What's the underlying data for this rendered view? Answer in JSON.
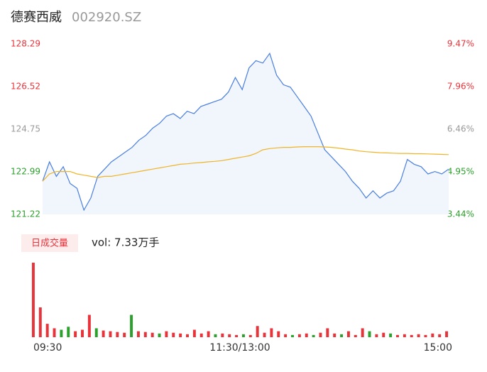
{
  "chart_data": [
    {
      "type": "line",
      "title": "德赛西威",
      "subtitle": "002920.SZ",
      "series": [
        {
          "name": "price",
          "color": "#4a7fe0",
          "values": [
            122.6,
            123.4,
            122.8,
            123.2,
            122.5,
            122.3,
            121.4,
            121.9,
            122.8,
            123.1,
            123.4,
            123.6,
            123.8,
            124.0,
            124.3,
            124.5,
            124.8,
            125.0,
            125.3,
            125.4,
            125.2,
            125.5,
            125.4,
            125.7,
            125.8,
            125.9,
            126.0,
            126.3,
            126.9,
            126.4,
            127.3,
            127.6,
            127.5,
            127.9,
            127.0,
            126.6,
            126.5,
            126.1,
            125.7,
            125.3,
            124.6,
            123.9,
            123.6,
            123.3,
            123.0,
            122.6,
            122.3,
            121.9,
            122.2,
            121.9,
            122.1,
            122.2,
            122.6,
            123.5,
            123.3,
            123.2,
            122.9,
            123.0,
            122.9,
            123.1
          ]
        },
        {
          "name": "average",
          "color": "#f0b428",
          "values": [
            122.6,
            122.9,
            123.0,
            123.0,
            123.0,
            122.9,
            122.85,
            122.8,
            122.75,
            122.8,
            122.8,
            122.85,
            122.9,
            122.95,
            123.0,
            123.05,
            123.1,
            123.15,
            123.2,
            123.25,
            123.3,
            123.32,
            123.35,
            123.37,
            123.4,
            123.42,
            123.45,
            123.5,
            123.55,
            123.6,
            123.65,
            123.75,
            123.9,
            123.95,
            123.98,
            124.0,
            124.0,
            124.02,
            124.03,
            124.03,
            124.03,
            124.02,
            124.0,
            123.97,
            123.93,
            123.9,
            123.85,
            123.82,
            123.8,
            123.78,
            123.77,
            123.76,
            123.75,
            123.75,
            123.74,
            123.74,
            123.73,
            123.72,
            123.71,
            123.7
          ]
        }
      ],
      "ylim": [
        121.22,
        128.29
      ],
      "yticks": [
        128.29,
        126.52,
        124.75,
        122.99,
        121.22
      ],
      "y2lim": [
        3.44,
        9.47
      ],
      "y2ticks": [
        {
          "value": 9.47,
          "label": "9.47%"
        },
        {
          "value": 7.96,
          "label": "7.96%"
        },
        {
          "value": 6.46,
          "label": "6.46%"
        },
        {
          "value": 4.95,
          "label": "4.95%"
        },
        {
          "value": 3.44,
          "label": "3.44%"
        }
      ]
    },
    {
      "type": "bar",
      "title": "日成交量",
      "annotation": "vol: 7.33万手",
      "values": [
        100,
        40,
        18,
        12,
        10,
        14,
        8,
        10,
        30,
        12,
        9,
        8,
        7,
        6,
        30,
        8,
        7,
        6,
        5,
        8,
        6,
        5,
        4,
        10,
        5,
        8,
        4,
        5,
        4,
        3,
        4,
        3,
        15,
        6,
        12,
        8,
        4,
        3,
        4,
        5,
        3,
        6,
        12,
        5,
        4,
        8,
        3,
        12,
        8,
        4,
        6,
        5,
        3,
        4,
        3,
        4,
        3,
        5,
        4,
        8
      ],
      "colors": [
        "#e8333a",
        "#e8333a",
        "#e8333a",
        "#e8333a",
        "#2ca02c",
        "#2ca02c",
        "#e8333a",
        "#e8333a",
        "#e8333a",
        "#2ca02c",
        "#e8333a",
        "#e8333a",
        "#e8333a",
        "#e8333a",
        "#2ca02c",
        "#e8333a",
        "#e8333a",
        "#e8333a",
        "#2ca02c",
        "#e8333a",
        "#e8333a",
        "#e8333a",
        "#e8333a",
        "#e8333a",
        "#e8333a",
        "#e8333a",
        "#2ca02c",
        "#e8333a",
        "#e8333a",
        "#e8333a",
        "#2ca02c",
        "#e8333a",
        "#e8333a",
        "#e8333a",
        "#e8333a",
        "#e8333a",
        "#e8333a",
        "#2ca02c",
        "#e8333a",
        "#e8333a",
        "#2ca02c",
        "#e8333a",
        "#e8333a",
        "#e8333a",
        "#2ca02c",
        "#e8333a",
        "#e8333a",
        "#e8333a",
        "#2ca02c",
        "#e8333a",
        "#e8333a",
        "#2ca02c",
        "#e8333a",
        "#e8333a",
        "#e8333a",
        "#e8333a",
        "#e8333a",
        "#e8333a",
        "#e8333a",
        "#e8333a"
      ],
      "ylim": [
        0,
        100
      ],
      "xticks": [
        "09:30",
        "11:30/13:00",
        "15:00"
      ]
    }
  ]
}
